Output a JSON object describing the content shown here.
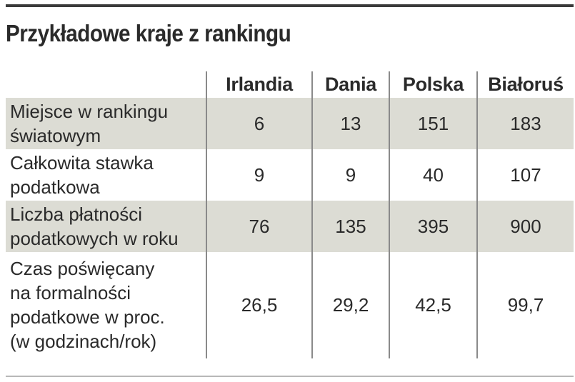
{
  "chart_data": {
    "type": "table",
    "title": "Przykładowe kraje z rankingu",
    "columns": [
      "",
      "Irlandia",
      "Dania",
      "Polska",
      "Białoruś"
    ],
    "rows": [
      {
        "label": "Miejsce w rankingu\nświatowym",
        "values": [
          "6",
          "13",
          "151",
          "183"
        ]
      },
      {
        "label": "Całkowita stawka\npodatkowa",
        "values": [
          "9",
          "9",
          "40",
          "107"
        ]
      },
      {
        "label": "Liczba płatności\npodatkowych w roku",
        "values": [
          "76",
          "135",
          "395",
          "900"
        ]
      },
      {
        "label": "Czas poświęcany\nna formalności\npodatkowe w proc.\n(w godzinach/rok)",
        "values": [
          "26,5",
          "29,2",
          "42,5",
          "99,7"
        ]
      }
    ],
    "shaded_rows": [
      0,
      2
    ],
    "colors": {
      "shade": "#dcdcd4",
      "text": "#2a2a2a",
      "rule": "#3a3a3a",
      "divider": "#8a8a8a"
    }
  }
}
